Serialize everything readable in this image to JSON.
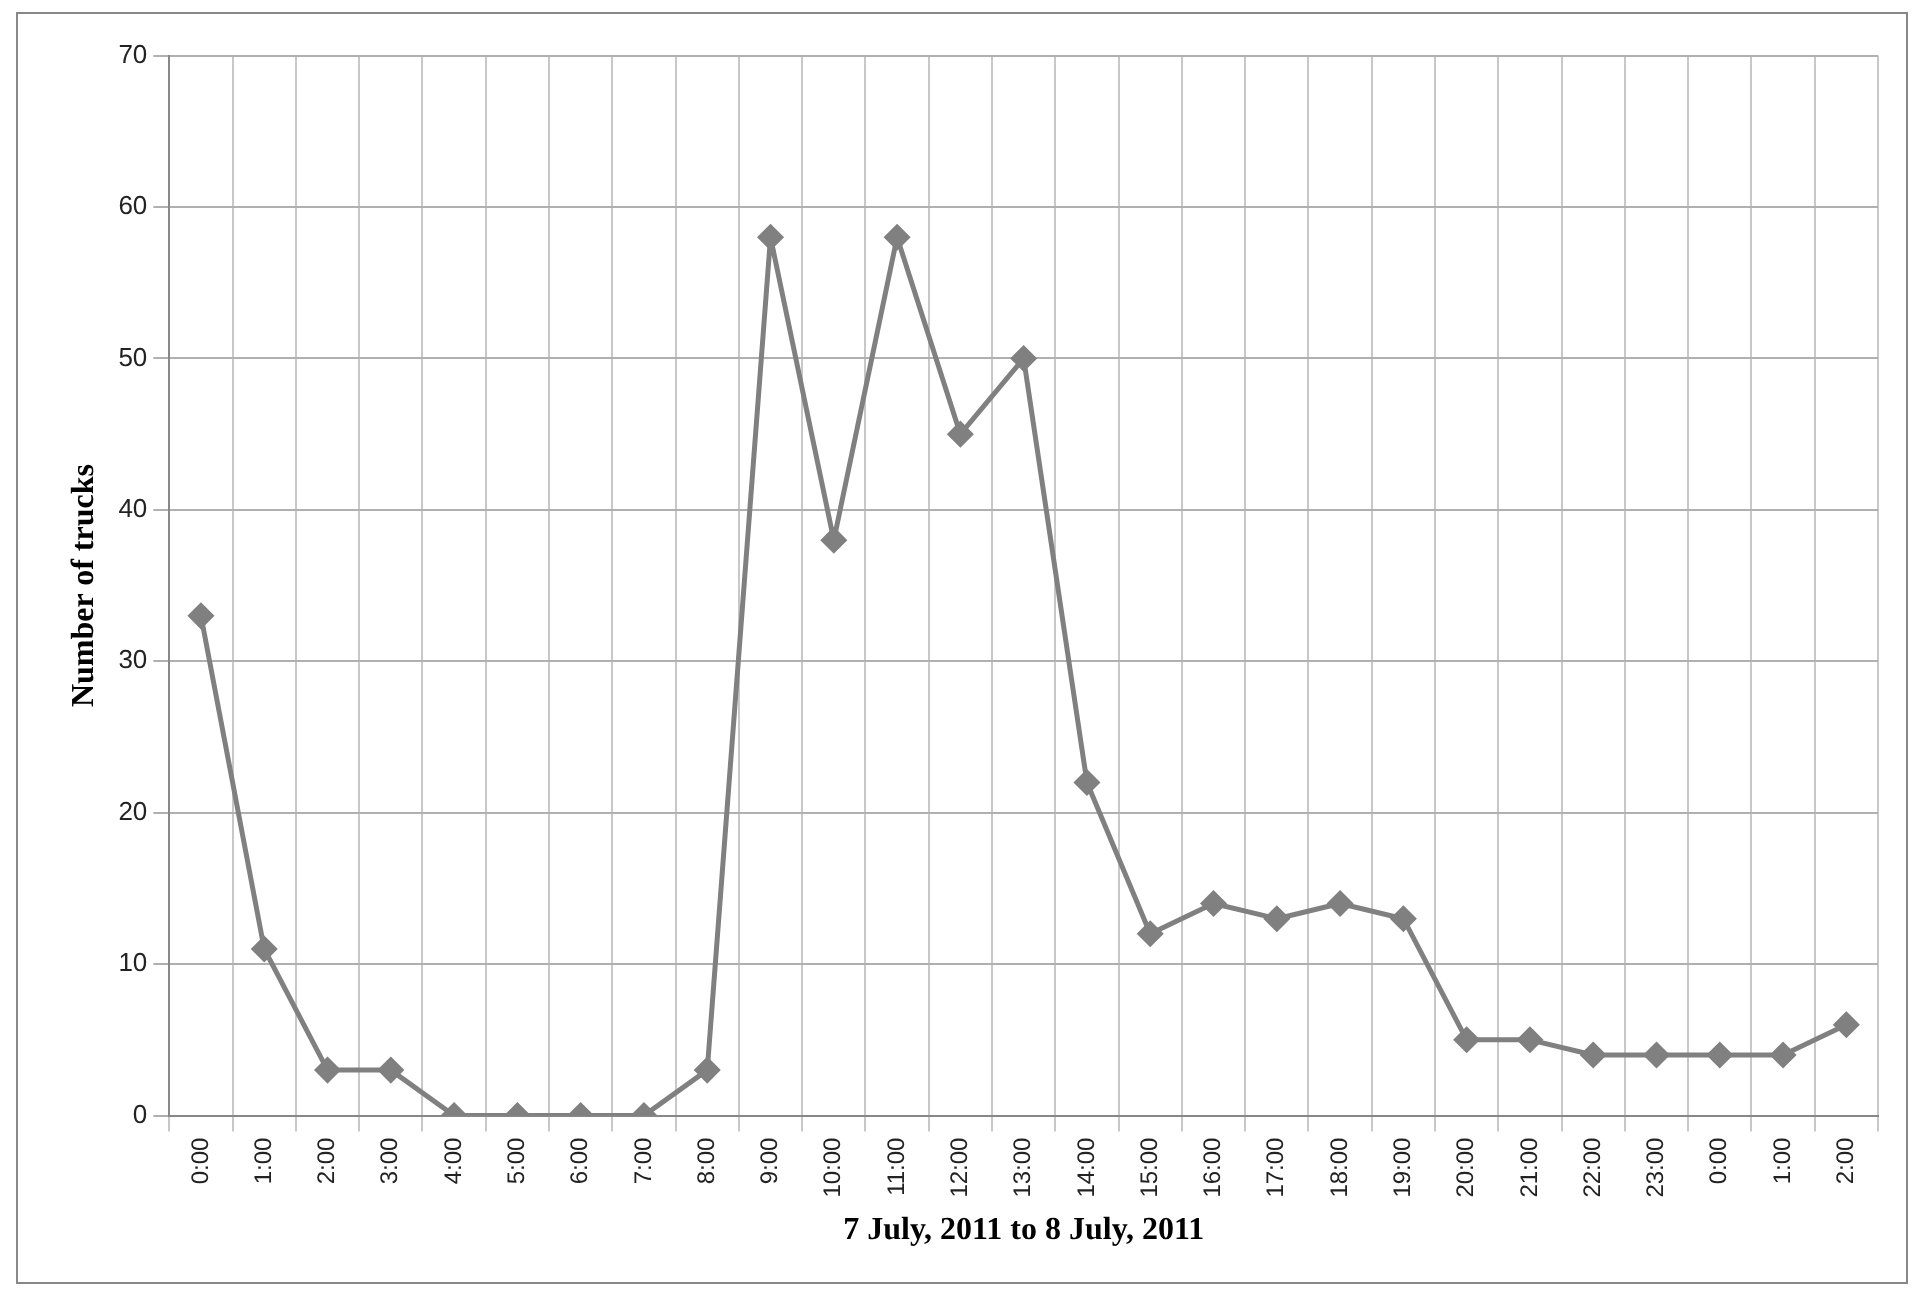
{
  "chart_data": {
    "type": "line",
    "xlabel": "7 July, 2011 to 8 July, 2011",
    "ylabel": "Number of trucks",
    "categories": [
      "0:00",
      "1:00",
      "2:00",
      "3:00",
      "4:00",
      "5:00",
      "6:00",
      "7:00",
      "8:00",
      "9:00",
      "10:00",
      "11:00",
      "12:00",
      "13:00",
      "14:00",
      "15:00",
      "16:00",
      "17:00",
      "18:00",
      "19:00",
      "20:00",
      "21:00",
      "22:00",
      "23:00",
      "0:00",
      "1:00",
      "2:00"
    ],
    "series": [
      {
        "color": "#808080",
        "values": [
          33,
          11,
          3,
          3,
          0,
          0,
          0,
          0,
          3,
          58,
          38,
          58,
          45,
          50,
          22,
          12,
          14,
          13,
          14,
          13,
          5,
          5,
          4,
          4,
          4,
          4,
          6
        ]
      }
    ],
    "ylim": [
      0,
      70
    ],
    "yticks": [
      0,
      10,
      20,
      30,
      40,
      50,
      60,
      70
    ],
    "grid": true,
    "legend": false,
    "marker": "diamond",
    "line_style": "solid"
  }
}
